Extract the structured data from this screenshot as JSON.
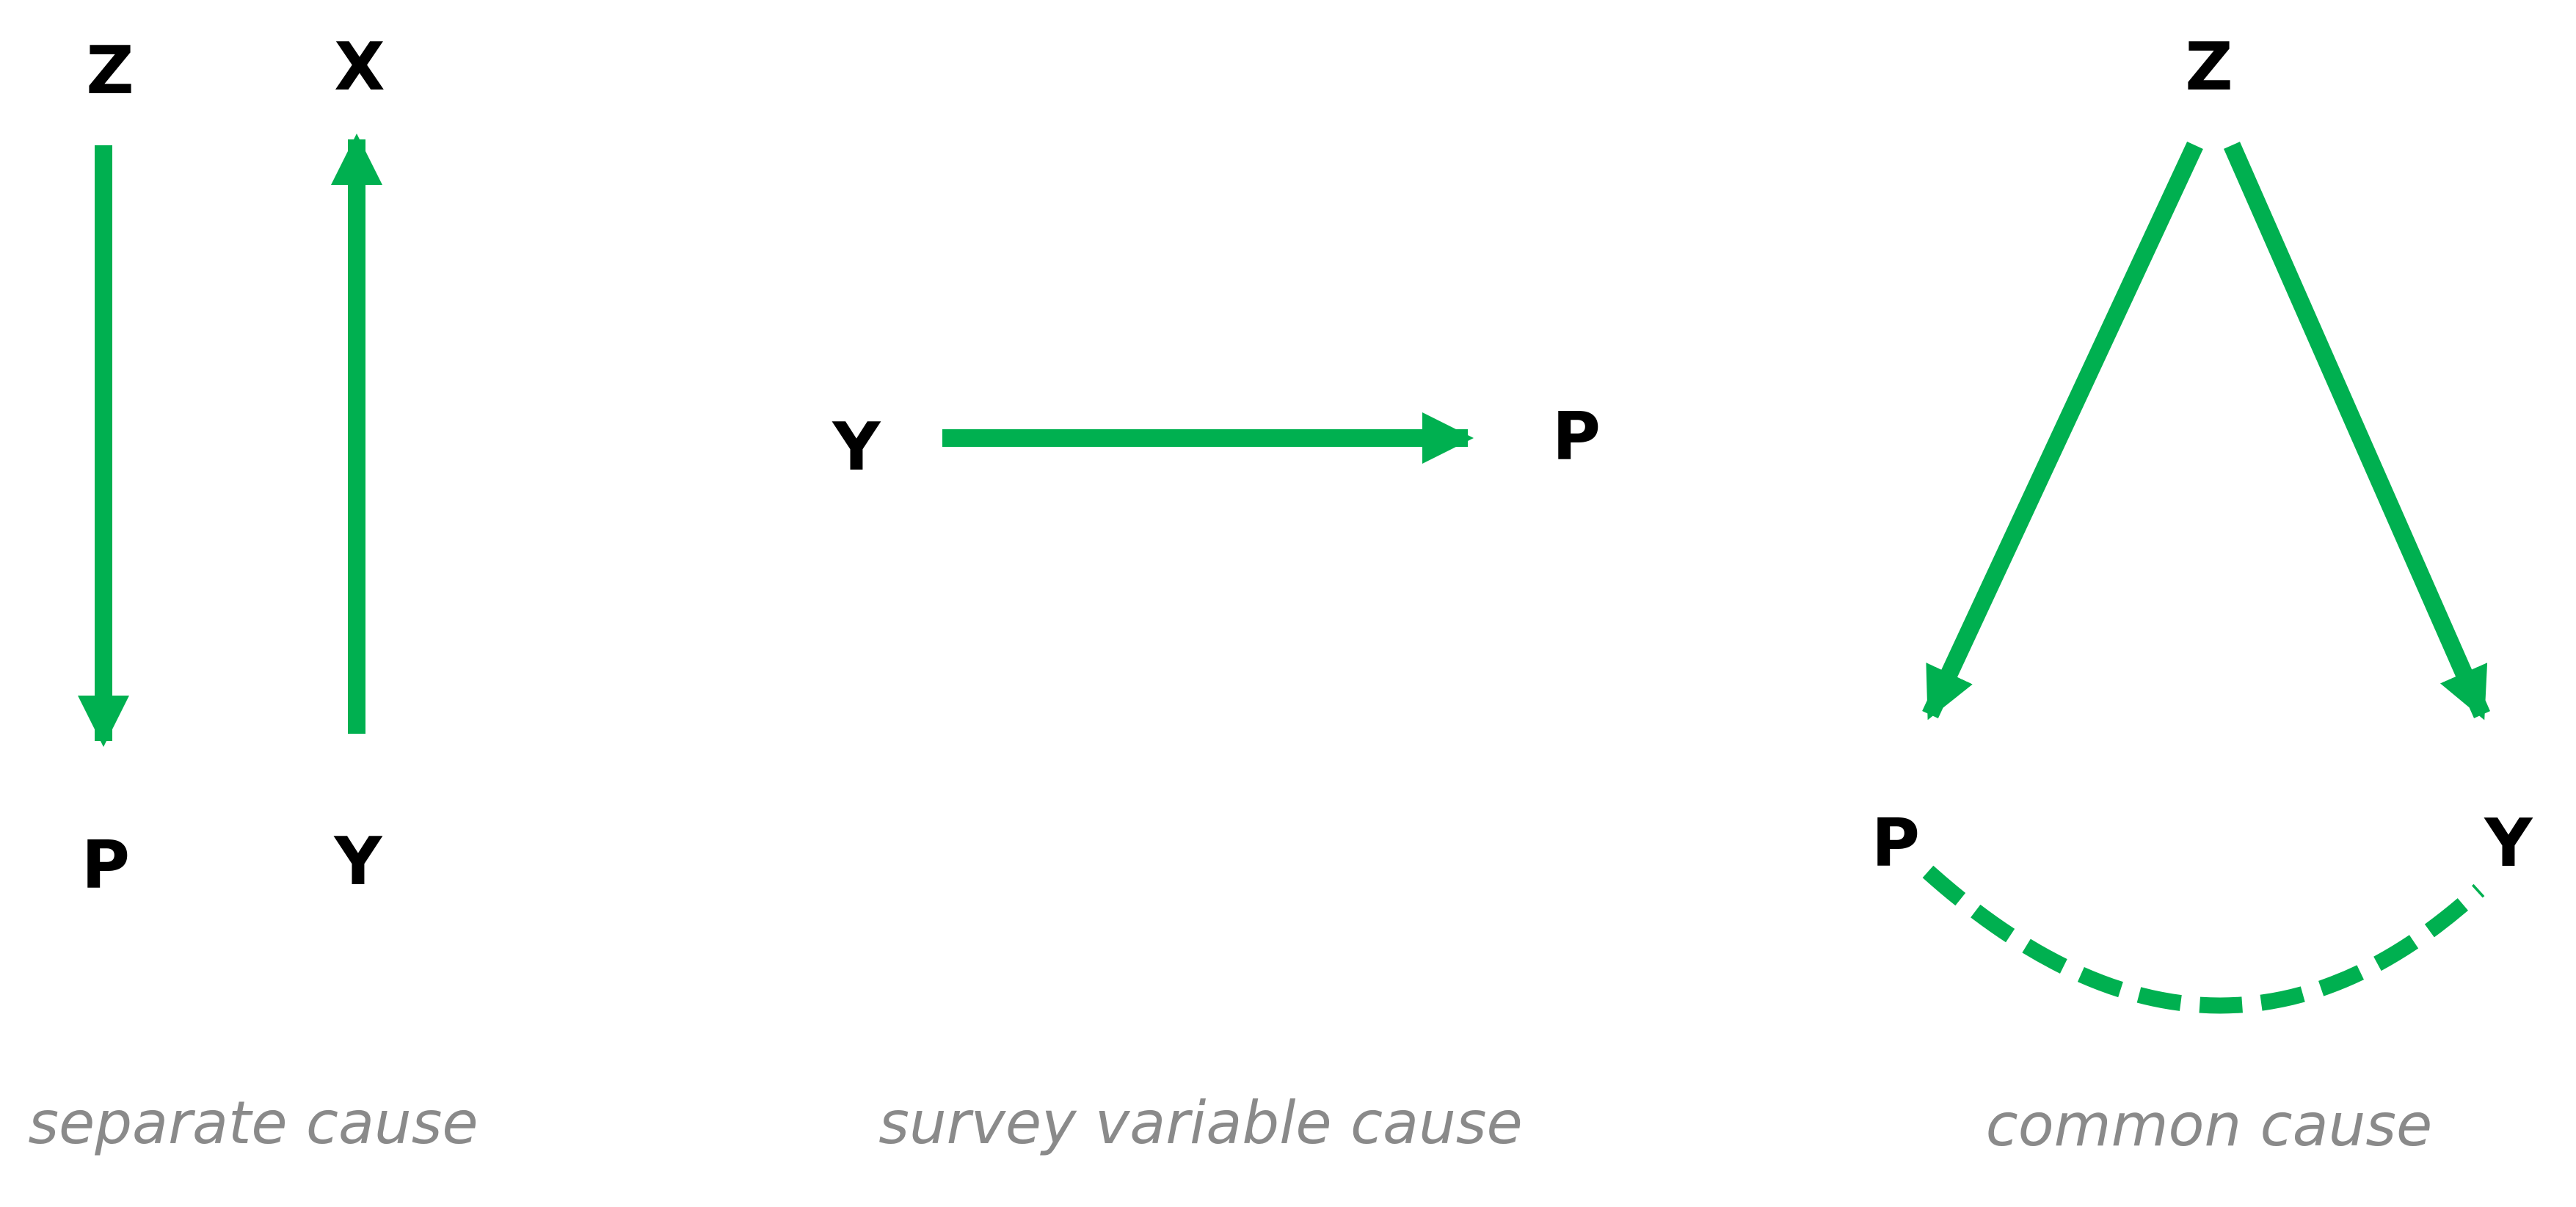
{
  "colors": {
    "arrow": "#00b050",
    "label": "#000000",
    "caption": "#8a8a8a",
    "background": "#ffffff"
  },
  "panels": {
    "separate": {
      "caption": "separate cause",
      "nodes": {
        "z": "Z",
        "x": "X",
        "p": "P",
        "y": "Y"
      }
    },
    "survey": {
      "caption": "survey variable cause",
      "nodes": {
        "y": "Y",
        "p": "P"
      }
    },
    "common": {
      "caption": "common cause",
      "nodes": {
        "z": "Z",
        "p": "P",
        "y": "Y"
      }
    }
  }
}
